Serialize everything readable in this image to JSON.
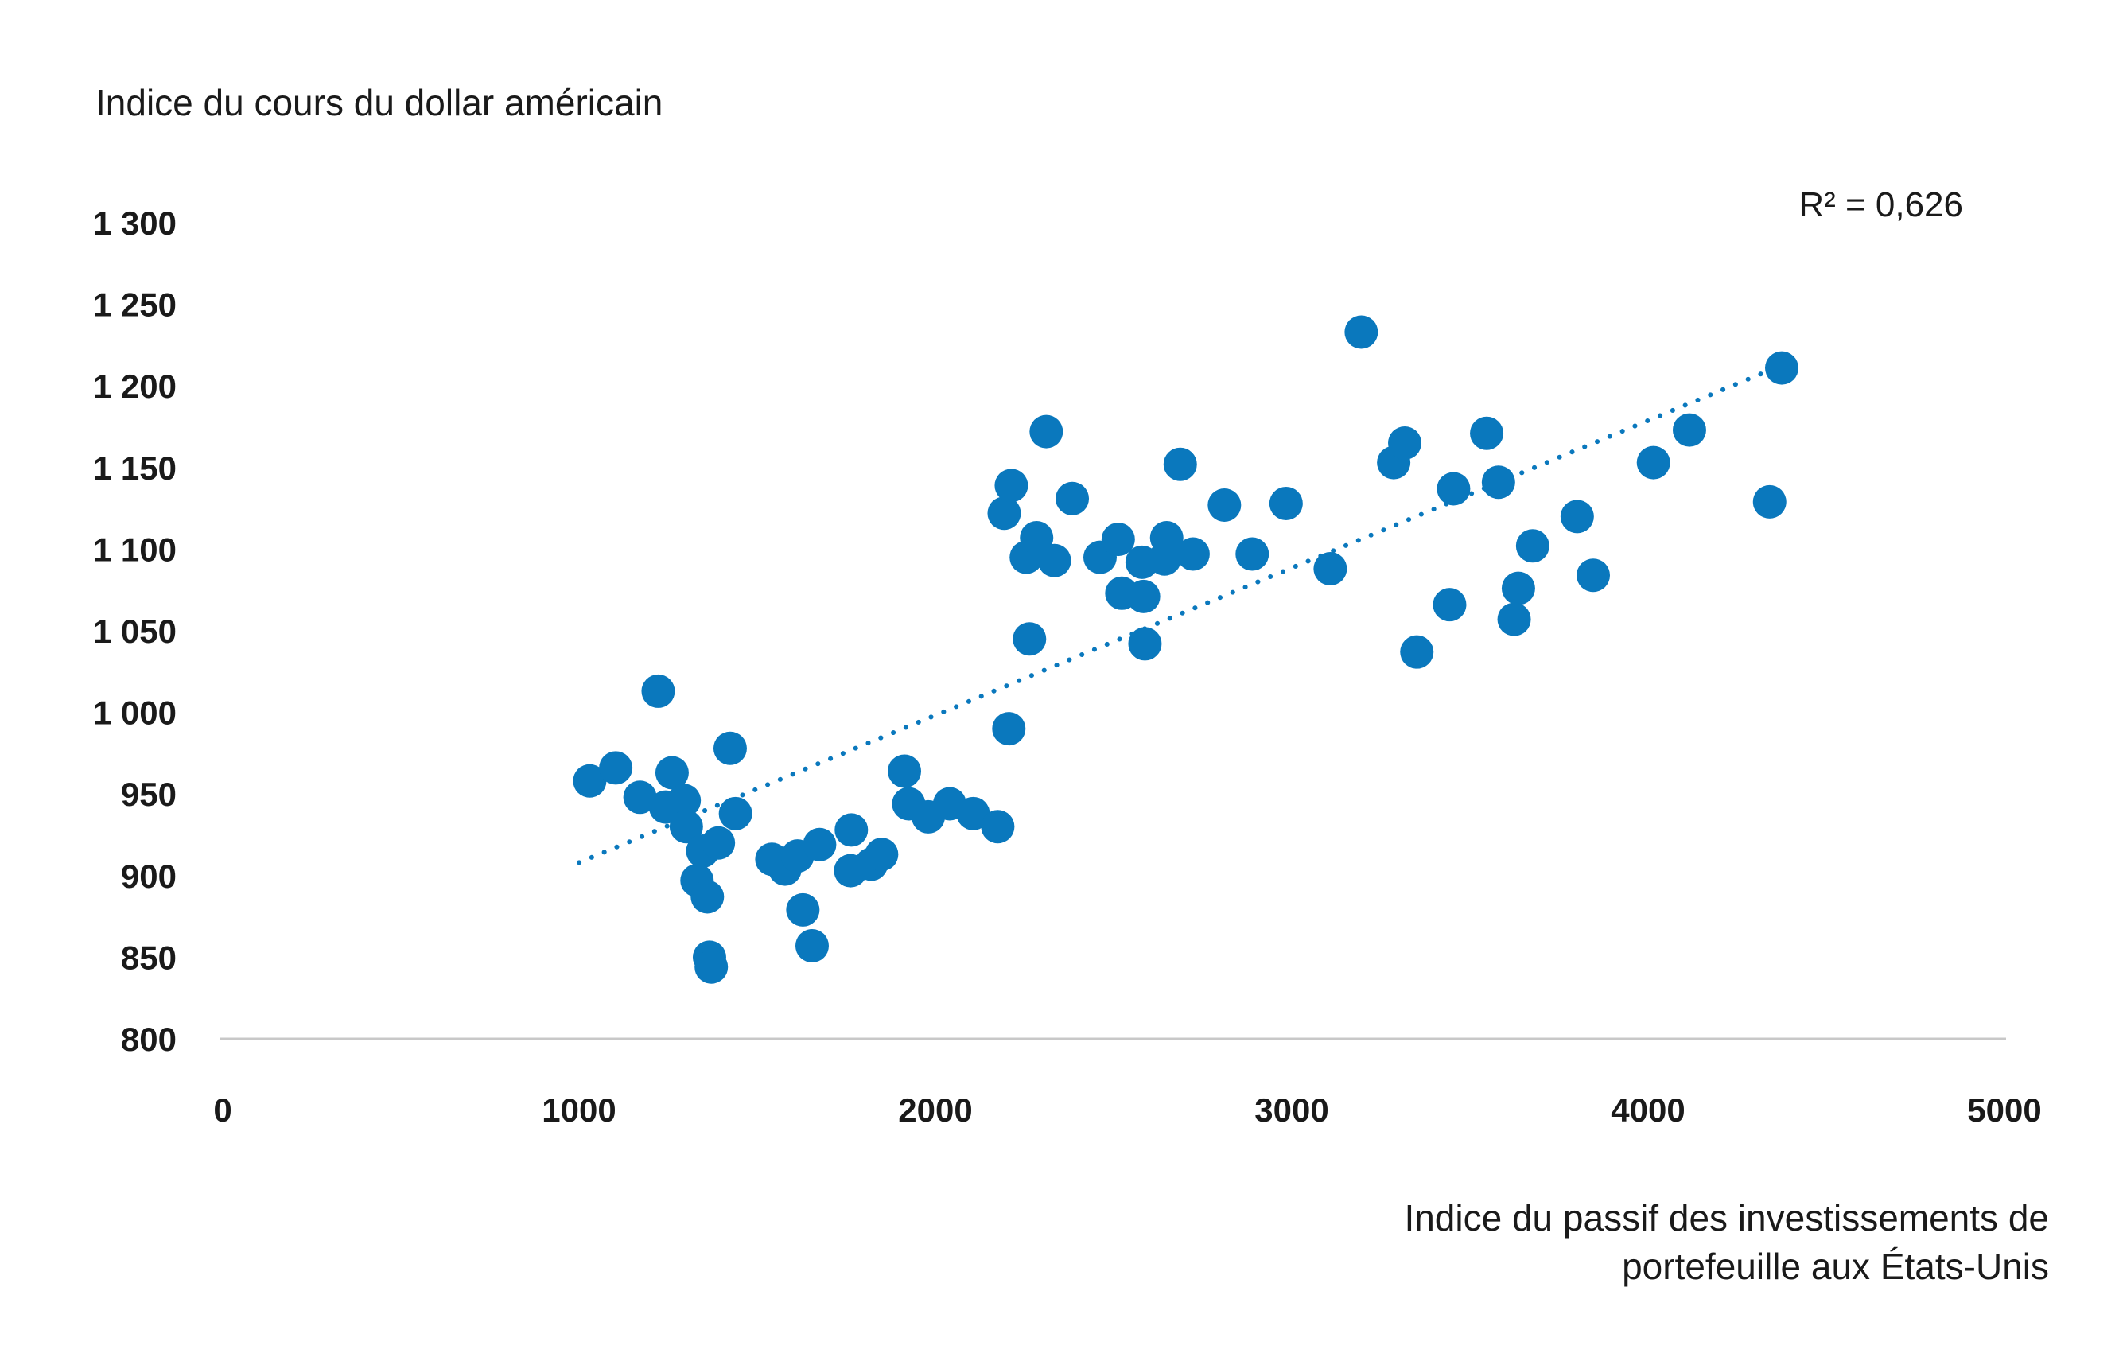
{
  "chart_data": {
    "type": "scatter",
    "ylabel": "Indice du cours du dollar américain",
    "xlabel_lines": [
      "Indice du passif des investissements de",
      "portefeuille aux États-Unis"
    ],
    "annotation": "R² = 0,626",
    "xlim": [
      0,
      5000
    ],
    "ylim": [
      800,
      1300
    ],
    "x_ticks": [
      0,
      1000,
      2000,
      3000,
      4000,
      5000
    ],
    "x_tick_labels": [
      "0",
      "1000",
      "2000",
      "3000",
      "4000",
      "5000"
    ],
    "y_ticks": [
      800,
      850,
      900,
      950,
      1000,
      1050,
      1100,
      1150,
      1200,
      1250,
      1300
    ],
    "y_tick_labels": [
      "800",
      "850",
      "900",
      "950",
      "1 000",
      "1 050",
      "1 100",
      "1 150",
      "1 200",
      "1 250",
      "1 300"
    ],
    "grid": false,
    "trendline": {
      "style": "dotted",
      "x": [
        1000,
        4390
      ],
      "y": [
        908,
        1214
      ]
    },
    "colors": {
      "points": "#0a78bd",
      "trendline": "#0a78bd",
      "axis": "#c8c8c8"
    },
    "points": [
      [
        1030,
        958
      ],
      [
        1103,
        966
      ],
      [
        1171,
        948
      ],
      [
        1222,
        1013
      ],
      [
        1243,
        942
      ],
      [
        1261,
        963
      ],
      [
        1295,
        946
      ],
      [
        1301,
        930
      ],
      [
        1331,
        897
      ],
      [
        1347,
        915
      ],
      [
        1360,
        887
      ],
      [
        1366,
        850
      ],
      [
        1371,
        844
      ],
      [
        1391,
        920
      ],
      [
        1424,
        978
      ],
      [
        1439,
        938
      ],
      [
        1541,
        910
      ],
      [
        1578,
        904
      ],
      [
        1613,
        912
      ],
      [
        1628,
        879
      ],
      [
        1654,
        857
      ],
      [
        1675,
        919
      ],
      [
        1762,
        903
      ],
      [
        1764,
        928
      ],
      [
        1820,
        907
      ],
      [
        1849,
        913
      ],
      [
        1913,
        964
      ],
      [
        1925,
        944
      ],
      [
        1980,
        936
      ],
      [
        2040,
        944
      ],
      [
        2106,
        938
      ],
      [
        2175,
        930
      ],
      [
        2206,
        990
      ],
      [
        2193,
        1122
      ],
      [
        2213,
        1139
      ],
      [
        2255,
        1095
      ],
      [
        2264,
        1045
      ],
      [
        2284,
        1107
      ],
      [
        2311,
        1172
      ],
      [
        2334,
        1093
      ],
      [
        2384,
        1131
      ],
      [
        2462,
        1095
      ],
      [
        2513,
        1106
      ],
      [
        2523,
        1073
      ],
      [
        2580,
        1092
      ],
      [
        2584,
        1071
      ],
      [
        2588,
        1042
      ],
      [
        2643,
        1094
      ],
      [
        2649,
        1107
      ],
      [
        2687,
        1152
      ],
      [
        2723,
        1097
      ],
      [
        2811,
        1127
      ],
      [
        2889,
        1097
      ],
      [
        2984,
        1128
      ],
      [
        3108,
        1088
      ],
      [
        3195,
        1233
      ],
      [
        3286,
        1153
      ],
      [
        3317,
        1165
      ],
      [
        3351,
        1037
      ],
      [
        3443,
        1066
      ],
      [
        3454,
        1137
      ],
      [
        3547,
        1171
      ],
      [
        3580,
        1141
      ],
      [
        3624,
        1057
      ],
      [
        3636,
        1076
      ],
      [
        3676,
        1102
      ],
      [
        3801,
        1120
      ],
      [
        3846,
        1084
      ],
      [
        4015,
        1153
      ],
      [
        4116,
        1173
      ],
      [
        4341,
        1129
      ],
      [
        4375,
        1211
      ]
    ]
  }
}
